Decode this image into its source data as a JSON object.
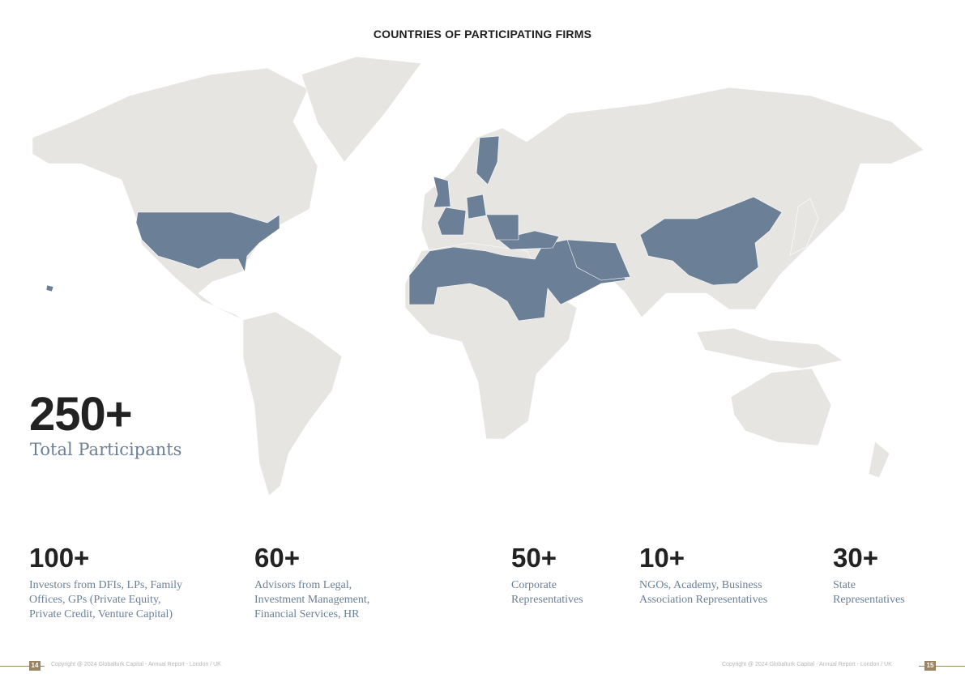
{
  "title": "COUNTRIES OF PARTICIPATING FIRMS",
  "colors": {
    "land": "#e6e5e1",
    "highlight": "#6b8096",
    "accent": "#9a8563"
  },
  "headline": {
    "value": "250+",
    "label": "Total Participants"
  },
  "stats": [
    {
      "value": "100+",
      "lines": [
        "Investors from DFIs, LPs, Family",
        "Offices, GPs (Private Equity,",
        "Private Credit, Venture Capital)"
      ]
    },
    {
      "value": "60+",
      "lines": [
        "Advisors from Legal,",
        "Investment Management,",
        "Financial Services, HR"
      ]
    },
    {
      "value": "50+",
      "lines": [
        "Corporate",
        "Representatives"
      ]
    },
    {
      "value": "10+",
      "lines": [
        "NGOs, Academy, Business",
        "Association Representatives"
      ]
    },
    {
      "value": "30+",
      "lines": [
        "State",
        "Representatives"
      ]
    }
  ],
  "footer": {
    "left_page": "14",
    "right_page": "15",
    "copyright_left": "Copyright @ 2024 Globalturk Capital - Annual Report - London / UK",
    "copyright_right": "Copyright @ 2024 Globalturk Capital - Annual Report - London / UK"
  }
}
